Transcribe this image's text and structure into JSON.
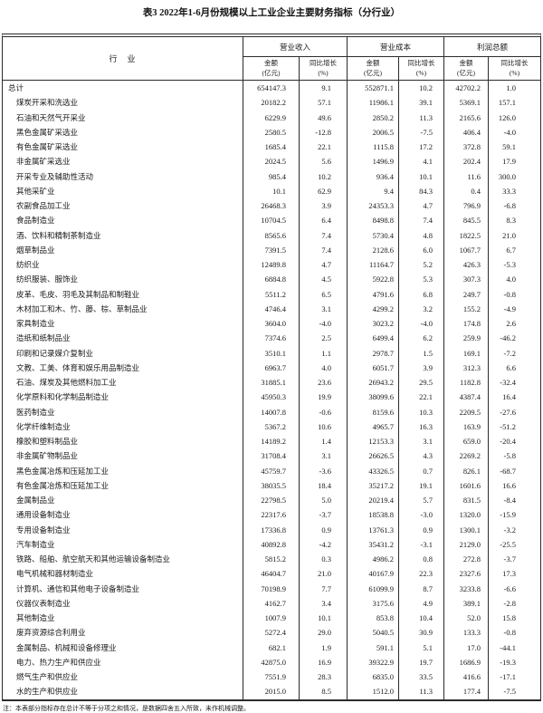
{
  "title": "表3  2022年1-6月份规模以上工业企业主要财务指标（分行业）",
  "header": {
    "industry": "行　业",
    "groups": [
      "营业收入",
      "营业成本",
      "利润总额"
    ],
    "sub": {
      "amount": [
        "金额",
        "(亿元)"
      ],
      "growth": [
        "同比增长",
        "(%)"
      ]
    }
  },
  "note": "注：本表部分指标存在总计不等于分项之和情况，是数据四舍五入所致，未作机械调整。",
  "table": {
    "columns": [
      "行业",
      "营业收入金额(亿元)",
      "营业收入同比增长(%)",
      "营业成本金额(亿元)",
      "营业成本同比增长(%)",
      "利润总额金额(亿元)",
      "利润总额同比增长(%)"
    ],
    "rows": [
      {
        "industry": "总计",
        "indent": 0,
        "values": [
          "654147.3",
          "9.1",
          "552871.1",
          "10.2",
          "42702.2",
          "1.0"
        ]
      },
      {
        "industry": "煤炭开采和洗选业",
        "indent": 1,
        "values": [
          "20182.2",
          "57.1",
          "11986.1",
          "39.1",
          "5369.1",
          "157.1"
        ]
      },
      {
        "industry": "石油和天然气开采业",
        "indent": 1,
        "values": [
          "6229.9",
          "49.6",
          "2850.2",
          "11.3",
          "2165.6",
          "126.0"
        ]
      },
      {
        "industry": "黑色金属矿采选业",
        "indent": 1,
        "values": [
          "2580.5",
          "-12.8",
          "2006.5",
          "-7.5",
          "406.4",
          "-4.0"
        ]
      },
      {
        "industry": "有色金属矿采选业",
        "indent": 1,
        "values": [
          "1685.4",
          "22.1",
          "1115.8",
          "17.2",
          "372.8",
          "59.1"
        ]
      },
      {
        "industry": "非金属矿采选业",
        "indent": 1,
        "values": [
          "2024.5",
          "5.6",
          "1496.9",
          "4.1",
          "202.4",
          "17.9"
        ]
      },
      {
        "industry": "开采专业及辅助性活动",
        "indent": 1,
        "values": [
          "985.4",
          "10.2",
          "936.4",
          "10.1",
          "11.6",
          "300.0"
        ]
      },
      {
        "industry": "其他采矿业",
        "indent": 1,
        "values": [
          "10.1",
          "62.9",
          "9.4",
          "84.3",
          "0.4",
          "33.3"
        ]
      },
      {
        "industry": "农副食品加工业",
        "indent": 1,
        "values": [
          "26468.3",
          "3.9",
          "24353.3",
          "4.7",
          "796.9",
          "-6.8"
        ]
      },
      {
        "industry": "食品制造业",
        "indent": 1,
        "values": [
          "10704.5",
          "6.4",
          "8498.8",
          "7.4",
          "845.5",
          "8.3"
        ]
      },
      {
        "industry": "酒、饮料和精制茶制造业",
        "indent": 1,
        "values": [
          "8565.6",
          "7.4",
          "5730.4",
          "4.8",
          "1822.5",
          "21.0"
        ]
      },
      {
        "industry": "烟草制品业",
        "indent": 1,
        "values": [
          "7391.5",
          "7.4",
          "2128.6",
          "6.0",
          "1067.7",
          "6.7"
        ]
      },
      {
        "industry": "纺织业",
        "indent": 1,
        "values": [
          "12489.8",
          "4.7",
          "11164.7",
          "5.2",
          "426.3",
          "-5.3"
        ]
      },
      {
        "industry": "纺织服装、服饰业",
        "indent": 1,
        "values": [
          "6884.8",
          "4.5",
          "5922.8",
          "5.3",
          "307.3",
          "4.0"
        ]
      },
      {
        "industry": "皮革、毛皮、羽毛及其制品和制鞋业",
        "indent": 1,
        "values": [
          "5511.2",
          "6.5",
          "4791.6",
          "6.8",
          "249.7",
          "-0.8"
        ]
      },
      {
        "industry": "木材加工和木、竹、藤、棕、草制品业",
        "indent": 1,
        "values": [
          "4746.4",
          "3.1",
          "4299.2",
          "3.2",
          "155.2",
          "-4.9"
        ]
      },
      {
        "industry": "家具制造业",
        "indent": 1,
        "values": [
          "3604.0",
          "-4.0",
          "3023.2",
          "-4.0",
          "174.8",
          "2.6"
        ]
      },
      {
        "industry": "造纸和纸制品业",
        "indent": 1,
        "values": [
          "7374.6",
          "2.5",
          "6499.4",
          "6.2",
          "259.9",
          "-46.2"
        ]
      },
      {
        "industry": "印刷和记录媒介复制业",
        "indent": 1,
        "values": [
          "3510.1",
          "1.1",
          "2978.7",
          "1.5",
          "169.1",
          "-7.2"
        ]
      },
      {
        "industry": "文教、工美、体育和娱乐用品制造业",
        "indent": 1,
        "values": [
          "6963.7",
          "4.0",
          "6051.7",
          "3.9",
          "312.3",
          "6.6"
        ]
      },
      {
        "industry": "石油、煤炭及其他燃料加工业",
        "indent": 1,
        "values": [
          "31885.1",
          "23.6",
          "26943.2",
          "29.5",
          "1182.8",
          "-32.4"
        ]
      },
      {
        "industry": "化学原料和化学制品制造业",
        "indent": 1,
        "values": [
          "45950.3",
          "19.9",
          "38099.6",
          "22.1",
          "4387.4",
          "16.4"
        ]
      },
      {
        "industry": "医药制造业",
        "indent": 1,
        "values": [
          "14007.8",
          "-0.6",
          "8159.6",
          "10.3",
          "2209.5",
          "-27.6"
        ]
      },
      {
        "industry": "化学纤维制造业",
        "indent": 1,
        "values": [
          "5367.2",
          "10.6",
          "4965.7",
          "16.3",
          "163.9",
          "-51.2"
        ]
      },
      {
        "industry": "橡胶和塑料制品业",
        "indent": 1,
        "values": [
          "14189.2",
          "1.4",
          "12153.3",
          "3.1",
          "659.0",
          "-20.4"
        ]
      },
      {
        "industry": "非金属矿物制品业",
        "indent": 1,
        "values": [
          "31708.4",
          "3.1",
          "26626.5",
          "4.3",
          "2269.2",
          "-5.8"
        ]
      },
      {
        "industry": "黑色金属冶炼和压延加工业",
        "indent": 1,
        "values": [
          "45759.7",
          "-3.6",
          "43326.5",
          "0.7",
          "826.1",
          "-68.7"
        ]
      },
      {
        "industry": "有色金属冶炼和压延加工业",
        "indent": 1,
        "values": [
          "38035.5",
          "18.4",
          "35217.2",
          "19.1",
          "1601.6",
          "16.6"
        ]
      },
      {
        "industry": "金属制品业",
        "indent": 1,
        "values": [
          "22798.5",
          "5.0",
          "20219.4",
          "5.7",
          "831.5",
          "-8.4"
        ]
      },
      {
        "industry": "通用设备制造业",
        "indent": 1,
        "values": [
          "22317.6",
          "-3.7",
          "18538.8",
          "-3.0",
          "1320.0",
          "-15.9"
        ]
      },
      {
        "industry": "专用设备制造业",
        "indent": 1,
        "values": [
          "17336.8",
          "0.9",
          "13761.3",
          "0.9",
          "1300.1",
          "-3.2"
        ]
      },
      {
        "industry": "汽车制造业",
        "indent": 1,
        "values": [
          "40892.8",
          "-4.2",
          "35431.2",
          "-3.1",
          "2129.0",
          "-25.5"
        ]
      },
      {
        "industry": "铁路、船舶、航空航天和其他运输设备制造业",
        "indent": 1,
        "values": [
          "5815.2",
          "0.3",
          "4986.2",
          "0.8",
          "272.8",
          "-3.7"
        ]
      },
      {
        "industry": "电气机械和器材制造业",
        "indent": 1,
        "values": [
          "46404.7",
          "21.0",
          "40167.9",
          "22.3",
          "2327.6",
          "17.3"
        ]
      },
      {
        "industry": "计算机、通信和其他电子设备制造业",
        "indent": 1,
        "values": [
          "70198.9",
          "7.7",
          "61099.9",
          "8.7",
          "3233.8",
          "-6.6"
        ]
      },
      {
        "industry": "仪器仪表制造业",
        "indent": 1,
        "values": [
          "4162.7",
          "3.4",
          "3175.6",
          "4.9",
          "389.1",
          "-2.8"
        ]
      },
      {
        "industry": "其他制造业",
        "indent": 1,
        "values": [
          "1007.9",
          "10.1",
          "853.8",
          "10.4",
          "52.0",
          "15.8"
        ]
      },
      {
        "industry": "废弃资源综合利用业",
        "indent": 1,
        "values": [
          "5272.4",
          "29.0",
          "5040.5",
          "30.9",
          "133.3",
          "-0.8"
        ]
      },
      {
        "industry": "金属制品、机械和设备修理业",
        "indent": 1,
        "values": [
          "682.1",
          "1.9",
          "591.1",
          "5.1",
          "17.0",
          "-44.1"
        ]
      },
      {
        "industry": "电力、热力生产和供应业",
        "indent": 1,
        "values": [
          "42875.0",
          "16.9",
          "39322.9",
          "19.7",
          "1686.9",
          "-19.3"
        ]
      },
      {
        "industry": "燃气生产和供应业",
        "indent": 1,
        "values": [
          "7551.9",
          "28.3",
          "6835.0",
          "33.5",
          "416.6",
          "-17.1"
        ]
      },
      {
        "industry": "水的生产和供应业",
        "indent": 1,
        "values": [
          "2015.0",
          "8.5",
          "1512.0",
          "11.3",
          "177.4",
          "-7.5"
        ]
      }
    ]
  }
}
